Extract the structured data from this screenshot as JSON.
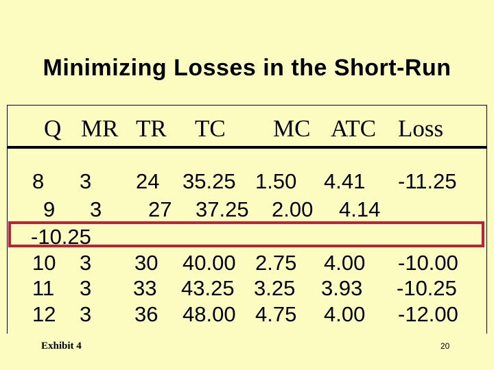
{
  "title": "Minimizing Losses in the Short-Run",
  "columns": [
    "Q",
    "MR",
    "TR",
    "TC",
    "MC",
    "ATC",
    "Loss"
  ],
  "rows": [
    [
      "8",
      "3",
      "24",
      "35.25",
      "1.50",
      "4.41",
      "-11.25"
    ],
    [
      "9",
      "3",
      "27",
      "37.25",
      "2.00",
      "4.14",
      "-10.25"
    ],
    [
      "10",
      "3",
      "30",
      "40.00",
      "2.75",
      "4.00",
      "-10.00"
    ],
    [
      "11",
      "3",
      "33",
      "43.25",
      "3.25",
      "3.93",
      "-10.25"
    ],
    [
      "12",
      "3",
      "36",
      "48.00",
      "4.75",
      "4.00",
      "-12.00"
    ]
  ],
  "highlight_color": "#c01f35",
  "background_color": "#fcfcc0",
  "footer": "Exhibit 4",
  "page_number": "20"
}
